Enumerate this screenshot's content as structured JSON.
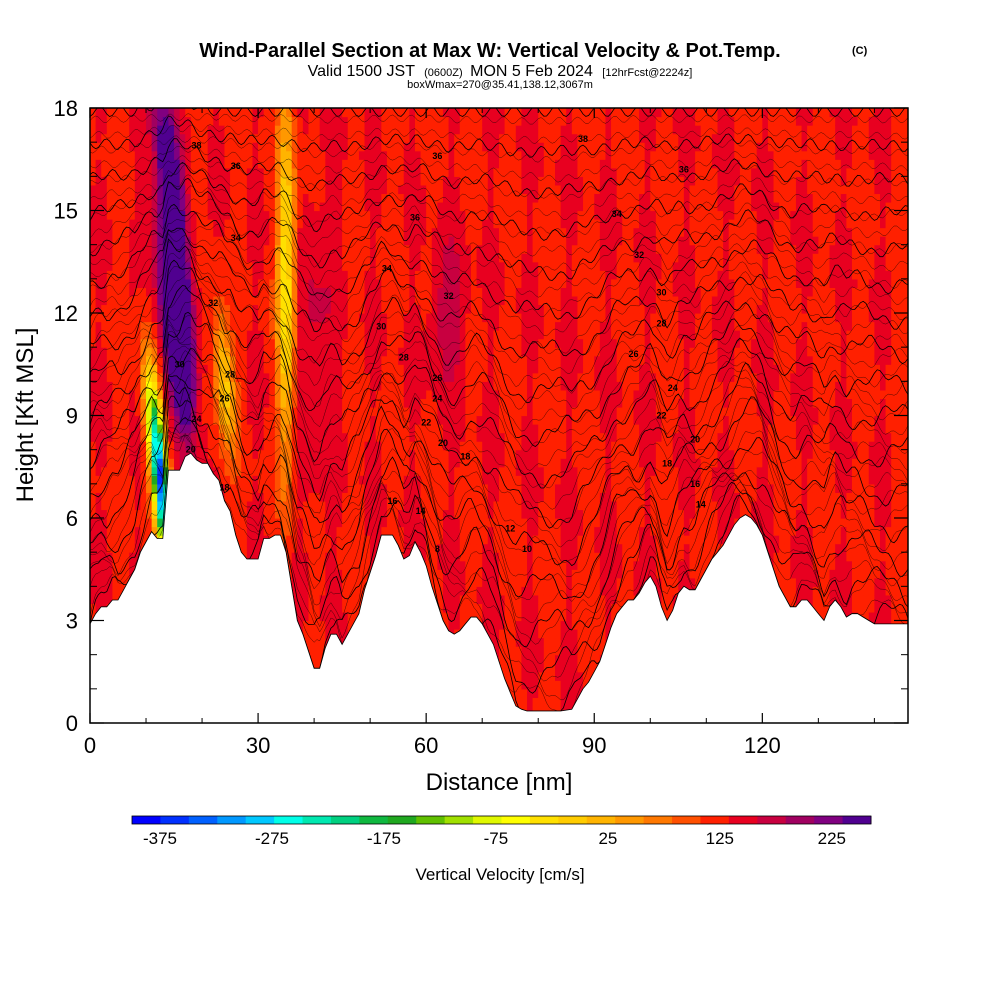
{
  "chart_data": {
    "type": "heatmap",
    "title": "Wind-Parallel Section at Max W: Vertical Velocity & Pot.Temp.",
    "title_suffix": "(C)",
    "subtitle_valid": "Valid 1500 JST",
    "subtitle_utc": "(0600Z)",
    "subtitle_date": "MON 5 Feb 2024",
    "subtitle_fcst": "[12hrFcst@2224z]",
    "subtitle_box": "boxWmax=270@35.41,138.12,3067m",
    "xlabel": "Distance [nm]",
    "ylabel": "Height [Kft MSL]",
    "xlim": [
      0,
      146
    ],
    "ylim": [
      0,
      18
    ],
    "x_ticks": [
      0,
      30,
      60,
      90,
      120
    ],
    "x_tick_labels": [
      "0",
      "30",
      "60",
      "90",
      "120"
    ],
    "y_ticks": [
      0,
      3,
      6,
      9,
      12,
      15,
      18
    ],
    "y_tick_labels": [
      "0",
      "3",
      "6",
      "9",
      "12",
      "15",
      "18"
    ],
    "colorbar": {
      "title": "Vertical Velocity [cm/s]",
      "min": -400,
      "max": 260,
      "step": 20,
      "tick_values": [
        -375,
        -275,
        -175,
        -75,
        25,
        125,
        225
      ],
      "tick_labels": [
        "-375",
        "-275",
        "-175",
        "-75",
        "25",
        "125",
        "225"
      ],
      "colors": [
        "#0000ff",
        "#0030ff",
        "#0060ff",
        "#0098ff",
        "#00c8ff",
        "#00ffe8",
        "#00e8b0",
        "#00d080",
        "#10b840",
        "#20a820",
        "#60c000",
        "#a0e000",
        "#e0f800",
        "#ffff00",
        "#ffe000",
        "#ffcc00",
        "#ffb400",
        "#ff9800",
        "#ff7800",
        "#ff5000",
        "#ff2000",
        "#e80020",
        "#c80040",
        "#a00060",
        "#800080",
        "#500090"
      ]
    },
    "terrain": [
      [
        0,
        2.9
      ],
      [
        1,
        3.2
      ],
      [
        2,
        3.4
      ],
      [
        3,
        3.4
      ],
      [
        4,
        3.6
      ],
      [
        5,
        3.6
      ],
      [
        6,
        3.9
      ],
      [
        7,
        4.2
      ],
      [
        8,
        4.5
      ],
      [
        9,
        5.0
      ],
      [
        10,
        5.3
      ],
      [
        11,
        5.6
      ],
      [
        12,
        5.4
      ],
      [
        13,
        5.4
      ],
      [
        14,
        7.4
      ],
      [
        15,
        7.4
      ],
      [
        16,
        7.4
      ],
      [
        17,
        7.8
      ],
      [
        18,
        7.9
      ],
      [
        19,
        7.7
      ],
      [
        20,
        7.6
      ],
      [
        21,
        7.6
      ],
      [
        22,
        7.3
      ],
      [
        23,
        7.1
      ],
      [
        24,
        6.5
      ],
      [
        25,
        6.2
      ],
      [
        26,
        5.5
      ],
      [
        27,
        5.0
      ],
      [
        28,
        4.8
      ],
      [
        29,
        4.8
      ],
      [
        30,
        4.8
      ],
      [
        31,
        5.4
      ],
      [
        32,
        5.4
      ],
      [
        33,
        5.5
      ],
      [
        34,
        5.5
      ],
      [
        35,
        5.0
      ],
      [
        36,
        4.0
      ],
      [
        37,
        3.0
      ],
      [
        38,
        2.6
      ],
      [
        39,
        2.1
      ],
      [
        40,
        1.6
      ],
      [
        41,
        1.6
      ],
      [
        42,
        2.2
      ],
      [
        43,
        2.6
      ],
      [
        44,
        2.6
      ],
      [
        45,
        2.3
      ],
      [
        46,
        2.6
      ],
      [
        47,
        2.9
      ],
      [
        48,
        3.2
      ],
      [
        49,
        3.9
      ],
      [
        50,
        4.4
      ],
      [
        51,
        4.9
      ],
      [
        52,
        5.5
      ],
      [
        53,
        5.5
      ],
      [
        54,
        5.5
      ],
      [
        55,
        5.2
      ],
      [
        56,
        4.8
      ],
      [
        57,
        4.9
      ],
      [
        58,
        5.3
      ],
      [
        59,
        5.0
      ],
      [
        60,
        4.6
      ],
      [
        61,
        4.0
      ],
      [
        62,
        3.5
      ],
      [
        63,
        3.0
      ],
      [
        64,
        2.7
      ],
      [
        65,
        2.6
      ],
      [
        66,
        2.7
      ],
      [
        67,
        2.9
      ],
      [
        68,
        3.1
      ],
      [
        69,
        3.1
      ],
      [
        70,
        2.9
      ],
      [
        71,
        2.6
      ],
      [
        72,
        2.3
      ],
      [
        73,
        1.8
      ],
      [
        74,
        1.3
      ],
      [
        75,
        0.9
      ],
      [
        76,
        0.5
      ],
      [
        77,
        0.4
      ],
      [
        78,
        0.35
      ],
      [
        80,
        0.35
      ],
      [
        82,
        0.35
      ],
      [
        84,
        0.35
      ],
      [
        86,
        0.4
      ],
      [
        87,
        0.7
      ],
      [
        88,
        1.0
      ],
      [
        89,
        1.2
      ],
      [
        90,
        1.5
      ],
      [
        91,
        1.8
      ],
      [
        92,
        2.3
      ],
      [
        93,
        2.8
      ],
      [
        94,
        3.2
      ],
      [
        95,
        3.4
      ],
      [
        96,
        3.6
      ],
      [
        97,
        3.6
      ],
      [
        98,
        3.8
      ],
      [
        99,
        4.1
      ],
      [
        100,
        4.3
      ],
      [
        101,
        4.0
      ],
      [
        102,
        3.4
      ],
      [
        103,
        3.0
      ],
      [
        104,
        3.3
      ],
      [
        105,
        3.8
      ],
      [
        106,
        4.0
      ],
      [
        107,
        3.9
      ],
      [
        108,
        3.9
      ],
      [
        109,
        4.2
      ],
      [
        110,
        4.5
      ],
      [
        111,
        4.8
      ],
      [
        112,
        5.0
      ],
      [
        113,
        5.2
      ],
      [
        114,
        5.5
      ],
      [
        115,
        5.8
      ],
      [
        116,
        6.0
      ],
      [
        117,
        6.1
      ],
      [
        118,
        6.0
      ],
      [
        119,
        5.8
      ],
      [
        120,
        5.5
      ],
      [
        121,
        5.0
      ],
      [
        122,
        4.5
      ],
      [
        123,
        4.0
      ],
      [
        124,
        3.7
      ],
      [
        125,
        3.4
      ],
      [
        126,
        3.4
      ],
      [
        127,
        3.6
      ],
      [
        128,
        3.6
      ],
      [
        129,
        3.4
      ],
      [
        130,
        3.2
      ],
      [
        131,
        3.0
      ],
      [
        132,
        3.4
      ],
      [
        133,
        3.6
      ],
      [
        134,
        3.4
      ],
      [
        135,
        3.1
      ],
      [
        136,
        3.2
      ],
      [
        137,
        3.2
      ],
      [
        138,
        3.1
      ],
      [
        139,
        3.0
      ],
      [
        140,
        2.9
      ],
      [
        141,
        2.9
      ],
      [
        142,
        2.9
      ],
      [
        143,
        2.9
      ],
      [
        144,
        2.9
      ],
      [
        145,
        2.9
      ],
      [
        146,
        2.9
      ]
    ],
    "w_features": [
      {
        "x": 15.5,
        "y": 11.5,
        "wx": 2.2,
        "wy": 2.5,
        "amp": 270,
        "tilt": -0.6
      },
      {
        "x": 14.5,
        "y": 15.5,
        "wx": 2.2,
        "wy": 3.2,
        "amp": 140,
        "tilt": -0.6
      },
      {
        "x": 12.5,
        "y": 7.2,
        "wx": 1.5,
        "wy": 2.8,
        "amp": -380,
        "tilt": -0.6
      },
      {
        "x": 24,
        "y": 10,
        "wx": 1.8,
        "wy": 2.0,
        "amp": -110,
        "tilt": -0.4
      },
      {
        "x": 35,
        "y": 13,
        "wx": 1.6,
        "wy": 5.5,
        "amp": -140,
        "tilt": 0
      },
      {
        "x": 64,
        "y": 12,
        "wx": 3.0,
        "wy": 2.0,
        "amp": 40,
        "tilt": 0
      },
      {
        "x": 40,
        "y": 11,
        "wx": 3.5,
        "wy": 4.0,
        "amp": 30,
        "tilt": 0
      }
    ],
    "theta_levels": [
      8,
      10,
      12,
      14,
      16,
      18,
      20,
      22,
      24,
      26,
      28,
      30,
      32,
      34,
      36,
      38
    ],
    "contour_labels": [
      {
        "x": 19,
        "y": 16.9,
        "text": "38"
      },
      {
        "x": 26,
        "y": 16.3,
        "text": "36"
      },
      {
        "x": 26,
        "y": 14.2,
        "text": "34"
      },
      {
        "x": 22,
        "y": 12.3,
        "text": "32"
      },
      {
        "x": 16,
        "y": 10.5,
        "text": "30"
      },
      {
        "x": 25,
        "y": 10.2,
        "text": "28"
      },
      {
        "x": 24,
        "y": 9.5,
        "text": "26"
      },
      {
        "x": 19,
        "y": 8.9,
        "text": "24"
      },
      {
        "x": 18,
        "y": 8.0,
        "text": "20"
      },
      {
        "x": 24,
        "y": 6.9,
        "text": "18"
      },
      {
        "x": 62,
        "y": 16.6,
        "text": "36"
      },
      {
        "x": 88,
        "y": 17.1,
        "text": "38"
      },
      {
        "x": 106,
        "y": 16.2,
        "text": "36"
      },
      {
        "x": 58,
        "y": 14.8,
        "text": "36"
      },
      {
        "x": 94,
        "y": 14.9,
        "text": "34"
      },
      {
        "x": 98,
        "y": 13.7,
        "text": "32"
      },
      {
        "x": 53,
        "y": 13.3,
        "text": "34"
      },
      {
        "x": 64,
        "y": 12.5,
        "text": "32"
      },
      {
        "x": 102,
        "y": 12.6,
        "text": "30"
      },
      {
        "x": 52,
        "y": 11.6,
        "text": "30"
      },
      {
        "x": 102,
        "y": 11.7,
        "text": "28"
      },
      {
        "x": 97,
        "y": 10.8,
        "text": "26"
      },
      {
        "x": 56,
        "y": 10.7,
        "text": "28"
      },
      {
        "x": 62,
        "y": 10.1,
        "text": "26"
      },
      {
        "x": 104,
        "y": 9.8,
        "text": "24"
      },
      {
        "x": 62,
        "y": 9.5,
        "text": "24"
      },
      {
        "x": 102,
        "y": 9.0,
        "text": "22"
      },
      {
        "x": 60,
        "y": 8.8,
        "text": "22"
      },
      {
        "x": 108,
        "y": 8.3,
        "text": "20"
      },
      {
        "x": 63,
        "y": 8.2,
        "text": "20"
      },
      {
        "x": 67,
        "y": 7.8,
        "text": "18"
      },
      {
        "x": 103,
        "y": 7.6,
        "text": "18"
      },
      {
        "x": 108,
        "y": 7.0,
        "text": "16"
      },
      {
        "x": 109,
        "y": 6.4,
        "text": "14"
      },
      {
        "x": 54,
        "y": 6.5,
        "text": "16"
      },
      {
        "x": 59,
        "y": 6.2,
        "text": "14"
      },
      {
        "x": 75,
        "y": 5.7,
        "text": "12"
      },
      {
        "x": 78,
        "y": 5.1,
        "text": "10"
      },
      {
        "x": 62,
        "y": 5.1,
        "text": "8"
      }
    ]
  }
}
